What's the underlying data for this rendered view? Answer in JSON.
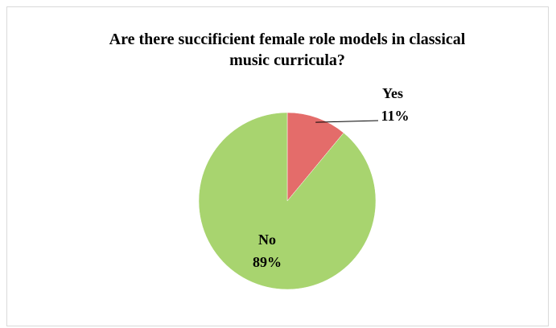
{
  "chart_data": {
    "type": "pie",
    "title_lines": [
      "Are there succificient female role models in classical",
      "music curricula?"
    ],
    "slices": [
      {
        "name": "Yes",
        "value": 11,
        "label": "11%",
        "color": "#e46c6a"
      },
      {
        "name": "No",
        "value": 89,
        "label": "89%",
        "color": "#a8d46f"
      }
    ],
    "legend": "none",
    "start_angle_deg": 0,
    "direction": "clockwise"
  }
}
